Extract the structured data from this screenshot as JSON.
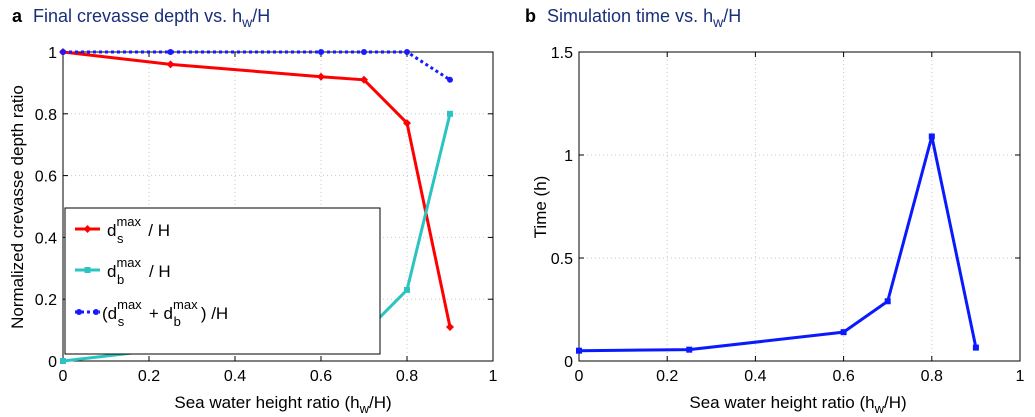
{
  "panel_a": {
    "letter": "a",
    "title": "Final crevasse depth vs. h",
    "title_sub": "w",
    "title_tail": "/H",
    "xlabel": "Sea water height ratio (h",
    "xlabel_sub": "w",
    "xlabel_tail": "/H)",
    "ylabel": "Normalized crevasse depth ratio"
  },
  "panel_b": {
    "letter": "b",
    "title": "Simulation time vs. h",
    "title_sub": "w",
    "title_tail": "/H",
    "xlabel": "Sea water height ratio (h",
    "xlabel_sub": "w",
    "xlabel_tail": "/H)",
    "ylabel": "Time (h)"
  },
  "legend": {
    "entries": [
      {
        "d": "d",
        "sub1": "s",
        "sup1": "max",
        "tail": " / H"
      },
      {
        "d": "d",
        "sub1": "b",
        "sup1": "max",
        "tail": " / H"
      },
      {
        "pre": "(d",
        "sub1": "s",
        "sup1": "max",
        "mid": " + d",
        "sub2": "b",
        "sup2": "max",
        "tail": ") /H"
      }
    ]
  },
  "chart_data": [
    {
      "type": "line",
      "xlim": [
        0,
        1
      ],
      "ylim": [
        0,
        1
      ],
      "xticks": [
        "0",
        "0.2",
        "0.4",
        "0.6",
        "0.8",
        "1"
      ],
      "yticks": [
        "0",
        "0.2",
        "0.4",
        "0.6",
        "0.8",
        "1"
      ],
      "grid": true,
      "legend_position": "lower-left",
      "x": [
        0,
        0.25,
        0.6,
        0.7,
        0.8,
        0.9
      ],
      "series": [
        {
          "name": "d_s^max / H",
          "color": "#ff0000",
          "marker": "diamond",
          "dashed": false,
          "values": [
            1.0,
            0.96,
            0.92,
            0.91,
            0.77,
            0.11
          ]
        },
        {
          "name": "d_b^max / H",
          "color": "#2cc4c0",
          "marker": "square",
          "dashed": false,
          "values": [
            0.0,
            0.04,
            0.08,
            0.09,
            0.23,
            0.8
          ]
        },
        {
          "name": "(d_s^max + d_b^max) /H",
          "color": "#1a1aff",
          "marker": "circle",
          "dashed": true,
          "values": [
            1.0,
            1.0,
            1.0,
            1.0,
            1.0,
            0.91
          ]
        }
      ]
    },
    {
      "type": "line",
      "xlim": [
        0,
        1
      ],
      "ylim": [
        0,
        1.5
      ],
      "xticks": [
        "0",
        "0.2",
        "0.4",
        "0.6",
        "0.8",
        "1"
      ],
      "yticks": [
        "0",
        "0.5",
        "1",
        "1.5"
      ],
      "grid": true,
      "x": [
        0,
        0.25,
        0.6,
        0.7,
        0.8,
        0.9
      ],
      "series": [
        {
          "color": "#0a1aff",
          "marker": "square",
          "dashed": false,
          "values": [
            0.05,
            0.055,
            0.14,
            0.29,
            1.09,
            0.065
          ]
        }
      ]
    }
  ]
}
